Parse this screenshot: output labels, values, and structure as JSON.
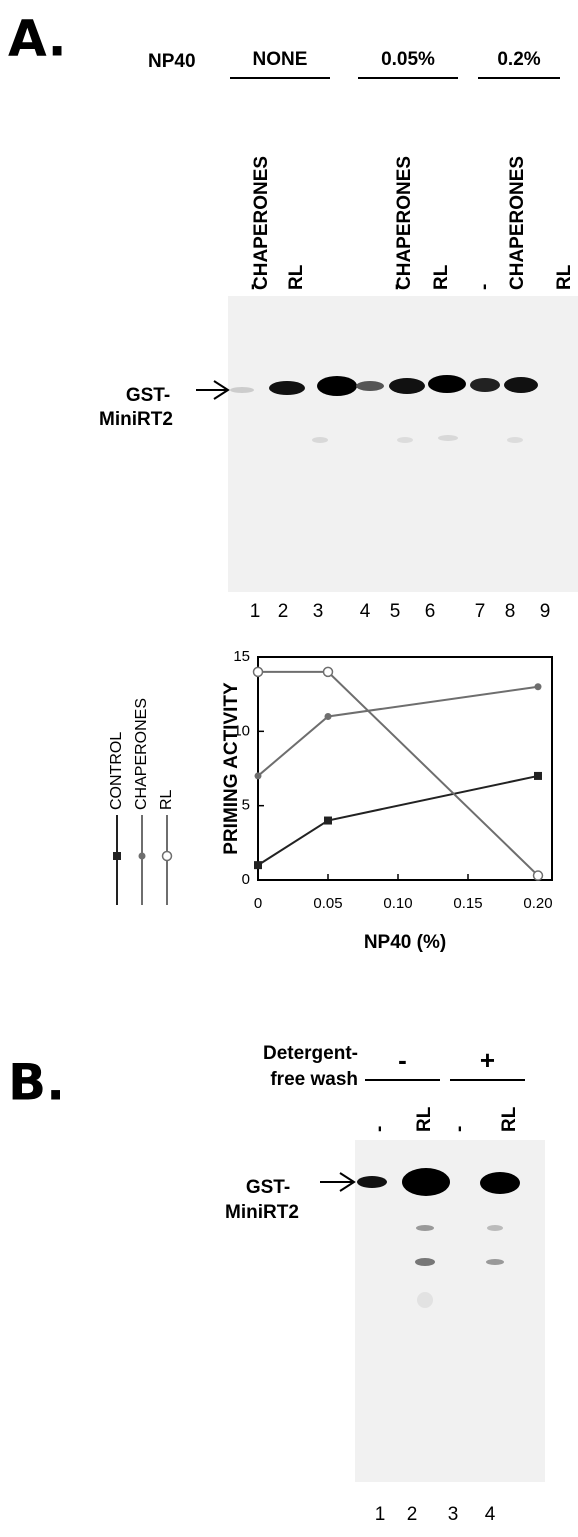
{
  "panel_a": {
    "label": "A.",
    "np40_label": "NP40",
    "groups": [
      "NONE",
      "0.05%",
      "0.2%"
    ],
    "lane_labels": [
      "-",
      "CHAPERONES",
      "RL",
      "-",
      "CHAPERONES",
      "RL",
      "-",
      "CHAPERONES",
      "RL"
    ],
    "band_label": [
      "GST-",
      "MiniRT2"
    ],
    "lane_numbers": [
      "1",
      "2",
      "3",
      "4",
      "5",
      "6",
      "7",
      "8",
      "9"
    ]
  },
  "chart_data": {
    "type": "line",
    "x": [
      0,
      0.05,
      0.2
    ],
    "series": [
      {
        "name": "CONTROL",
        "color": "#222222",
        "marker": "square",
        "values": [
          1,
          4,
          7
        ]
      },
      {
        "name": "CHAPERONES",
        "color": "#6e6e6e",
        "marker": "circle",
        "values": [
          7,
          11,
          13
        ]
      },
      {
        "name": "RL",
        "color": "#6e6e6e",
        "marker": "open-circle",
        "values": [
          14,
          14,
          0.3
        ]
      }
    ],
    "xlim": [
      0,
      0.21
    ],
    "xticks": [
      0,
      0.05,
      {
        "value": 0.1,
        "label": "0.10"
      },
      0.15,
      {
        "value": 0.2,
        "label": "0.20"
      }
    ],
    "ylim": [
      0,
      15
    ],
    "yticks": [
      0,
      5,
      10,
      15
    ],
    "xlabel": "NP40 (%)",
    "ylabel": "PRIMING ACTIVITY"
  },
  "panel_b": {
    "label": "B.",
    "condition_label": [
      "Detergent-",
      "free wash"
    ],
    "groups": [
      "-",
      "+"
    ],
    "lane_labels": [
      "-",
      "RL",
      "-",
      "RL"
    ],
    "band_label": [
      "GST-",
      "MiniRT2"
    ],
    "lane_numbers": [
      "1",
      "2",
      "3",
      "4"
    ]
  }
}
